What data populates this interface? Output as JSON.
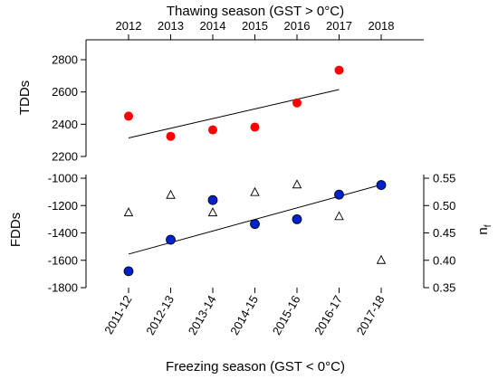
{
  "colors": {
    "tdd_points": "#ff0000",
    "fdd_points": "#0022cc",
    "nf_points": "#ffffff",
    "trend_line": "#000000"
  },
  "chart_data": [
    {
      "type": "scatter",
      "panel": "top",
      "title": "",
      "top_axis_label": "Thawing season (GST > 0°C)",
      "top_axis_ticks": [
        "2012",
        "2013",
        "2014",
        "2015",
        "2016",
        "2017",
        "2018"
      ],
      "ylabel": "TDDs",
      "ylim": [
        2200,
        2800
      ],
      "yticks": [
        2200,
        2400,
        2600,
        2800
      ],
      "series": [
        {
          "x": [
            "2012",
            "2013",
            "2014",
            "2015",
            "2016",
            "2017"
          ],
          "values": [
            2450,
            2325,
            2365,
            2382,
            2532,
            2735
          ],
          "marker": "filled-circle",
          "color": "#ff0000"
        }
      ],
      "trendline": {
        "x": [
          "2012",
          "2017"
        ],
        "values": [
          2315,
          2615
        ]
      },
      "grid": false
    },
    {
      "type": "scatter",
      "panel": "bottom",
      "title": "",
      "xlabel": "Freezing season (GST < 0°C)",
      "categories": [
        "2011-12",
        "2012-13",
        "2013-14",
        "2014-15",
        "2015-16",
        "2016-17",
        "2017-18"
      ],
      "ylabel": "FDDs",
      "ylim": [
        -1800,
        -1000
      ],
      "yticks": [
        -1800,
        -1600,
        -1400,
        -1200,
        -1000
      ],
      "y2label": "n",
      "y2label_sub": "f",
      "y2lim": [
        0.35,
        0.55
      ],
      "y2ticks": [
        0.35,
        0.4,
        0.45,
        0.5,
        0.55
      ],
      "series": [
        {
          "axis": "left",
          "values": [
            -1680,
            -1450,
            -1160,
            -1335,
            -1300,
            -1120,
            -1050
          ],
          "marker": "filled-circle",
          "color": "#0022cc"
        },
        {
          "axis": "right",
          "values": [
            0.487,
            0.519,
            0.487,
            0.524,
            0.538,
            0.48,
            0.4
          ],
          "marker": "open-triangle",
          "color": "#000000"
        }
      ],
      "trendline": {
        "x": [
          "2011-12",
          "2017-18"
        ],
        "values": [
          -1555,
          -1048
        ]
      },
      "grid": false
    }
  ]
}
